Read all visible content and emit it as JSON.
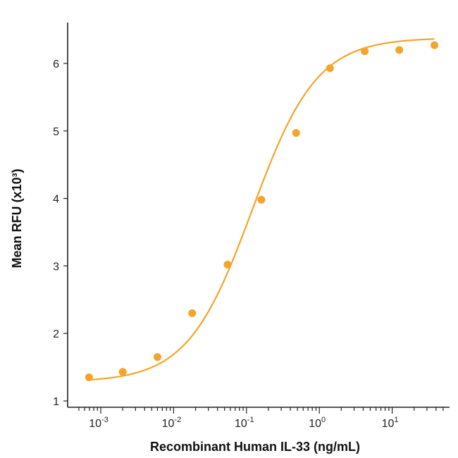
{
  "chart_data": {
    "type": "scatter",
    "xscale": "log",
    "xlabel": "Recombinant Human IL-33 (ng/mL)",
    "ylabel": "Mean RFU (x10³)",
    "xlim": [
      0.0005,
      50
    ],
    "ylim": [
      1,
      6.6
    ],
    "x_ticks": [
      {
        "value": 0.001,
        "base": "10",
        "exp": "-3"
      },
      {
        "value": 0.01,
        "base": "10",
        "exp": "-2"
      },
      {
        "value": 0.1,
        "base": "10",
        "exp": "-1"
      },
      {
        "value": 1,
        "base": "10",
        "exp": "0"
      },
      {
        "value": 10,
        "base": "10",
        "exp": "1"
      }
    ],
    "y_ticks": [
      1,
      2,
      3,
      4,
      5,
      6
    ],
    "grid": false,
    "color": "#F5A42A",
    "series": [
      {
        "points": [
          {
            "x": 0.00069,
            "y": 1.35
          },
          {
            "x": 0.002,
            "y": 1.43
          },
          {
            "x": 0.006,
            "y": 1.65
          },
          {
            "x": 0.018,
            "y": 2.3
          },
          {
            "x": 0.055,
            "y": 3.02
          },
          {
            "x": 0.16,
            "y": 3.98
          },
          {
            "x": 0.48,
            "y": 4.97
          },
          {
            "x": 1.4,
            "y": 5.93
          },
          {
            "x": 4.2,
            "y": 6.18
          },
          {
            "x": 12.5,
            "y": 6.2
          },
          {
            "x": 38,
            "y": 6.27
          }
        ]
      }
    ],
    "fit": {
      "model": "4PL",
      "bottom": 1.28,
      "top": 6.38,
      "ec50": 0.12,
      "hill": 0.98
    }
  }
}
